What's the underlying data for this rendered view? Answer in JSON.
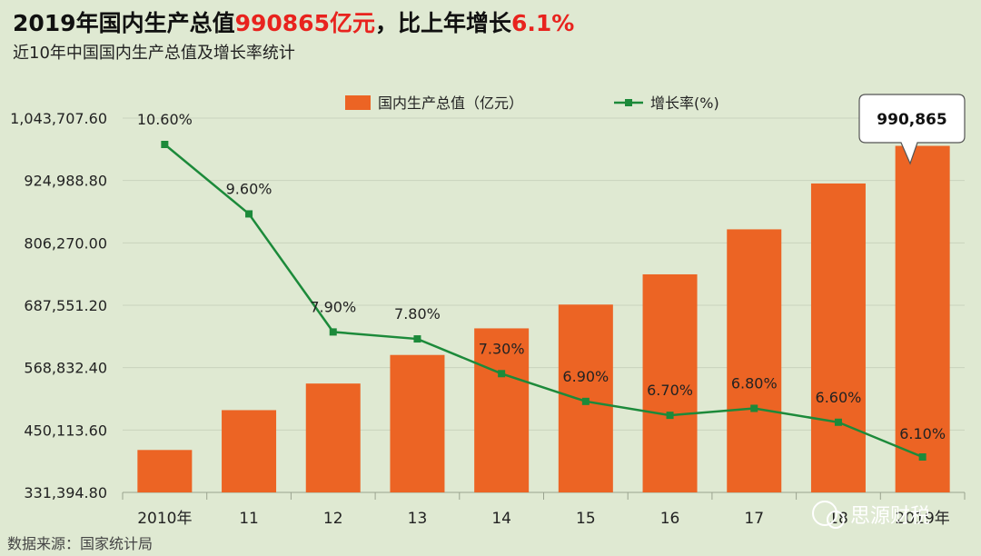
{
  "header": {
    "title_prefix": "2019年国内生产总值",
    "title_value": "990865亿元",
    "title_middle": "，比上年增长",
    "title_rate": "6.1%",
    "subtitle": "近10年中国国内生产总值及增长率统计",
    "accent_color": "#e8231e"
  },
  "footer": {
    "source": "数据来源：国家统计局",
    "watermark": "思源财税"
  },
  "callout": {
    "text": "990,865"
  },
  "chart_data": {
    "type": "bar",
    "categories": [
      "2010年",
      "11",
      "12",
      "13",
      "14",
      "15",
      "16",
      "17",
      "18",
      "2019年"
    ],
    "ylim": [
      331394.8,
      1043707.6
    ],
    "ytick_labels": [
      "331,394.80",
      "450,113.60",
      "568,832.40",
      "687,551.20",
      "806,270.00",
      "924,988.80",
      "1,043,707.60"
    ],
    "ytick_values": [
      331394.8,
      450113.6,
      568832.4,
      687551.2,
      806270.0,
      924988.8,
      1043707.6
    ],
    "grid": true,
    "legend_position": "top",
    "series": [
      {
        "name": "国内生产总值（亿元）",
        "type": "bar",
        "color": "#ec6424",
        "values": [
          412119,
          487940,
          538580,
          592963,
          643563,
          688858,
          746395,
          832036,
          919281,
          990865
        ]
      },
      {
        "name": "增长率(%)",
        "type": "line",
        "color": "#1c8a3a",
        "values": [
          10.6,
          9.6,
          7.9,
          7.8,
          7.3,
          6.9,
          6.7,
          6.8,
          6.6,
          6.1
        ],
        "labels": [
          "10.60%",
          "9.60%",
          "7.90%",
          "7.80%",
          "7.30%",
          "6.90%",
          "6.70%",
          "6.80%",
          "6.60%",
          "6.10%"
        ]
      }
    ]
  }
}
